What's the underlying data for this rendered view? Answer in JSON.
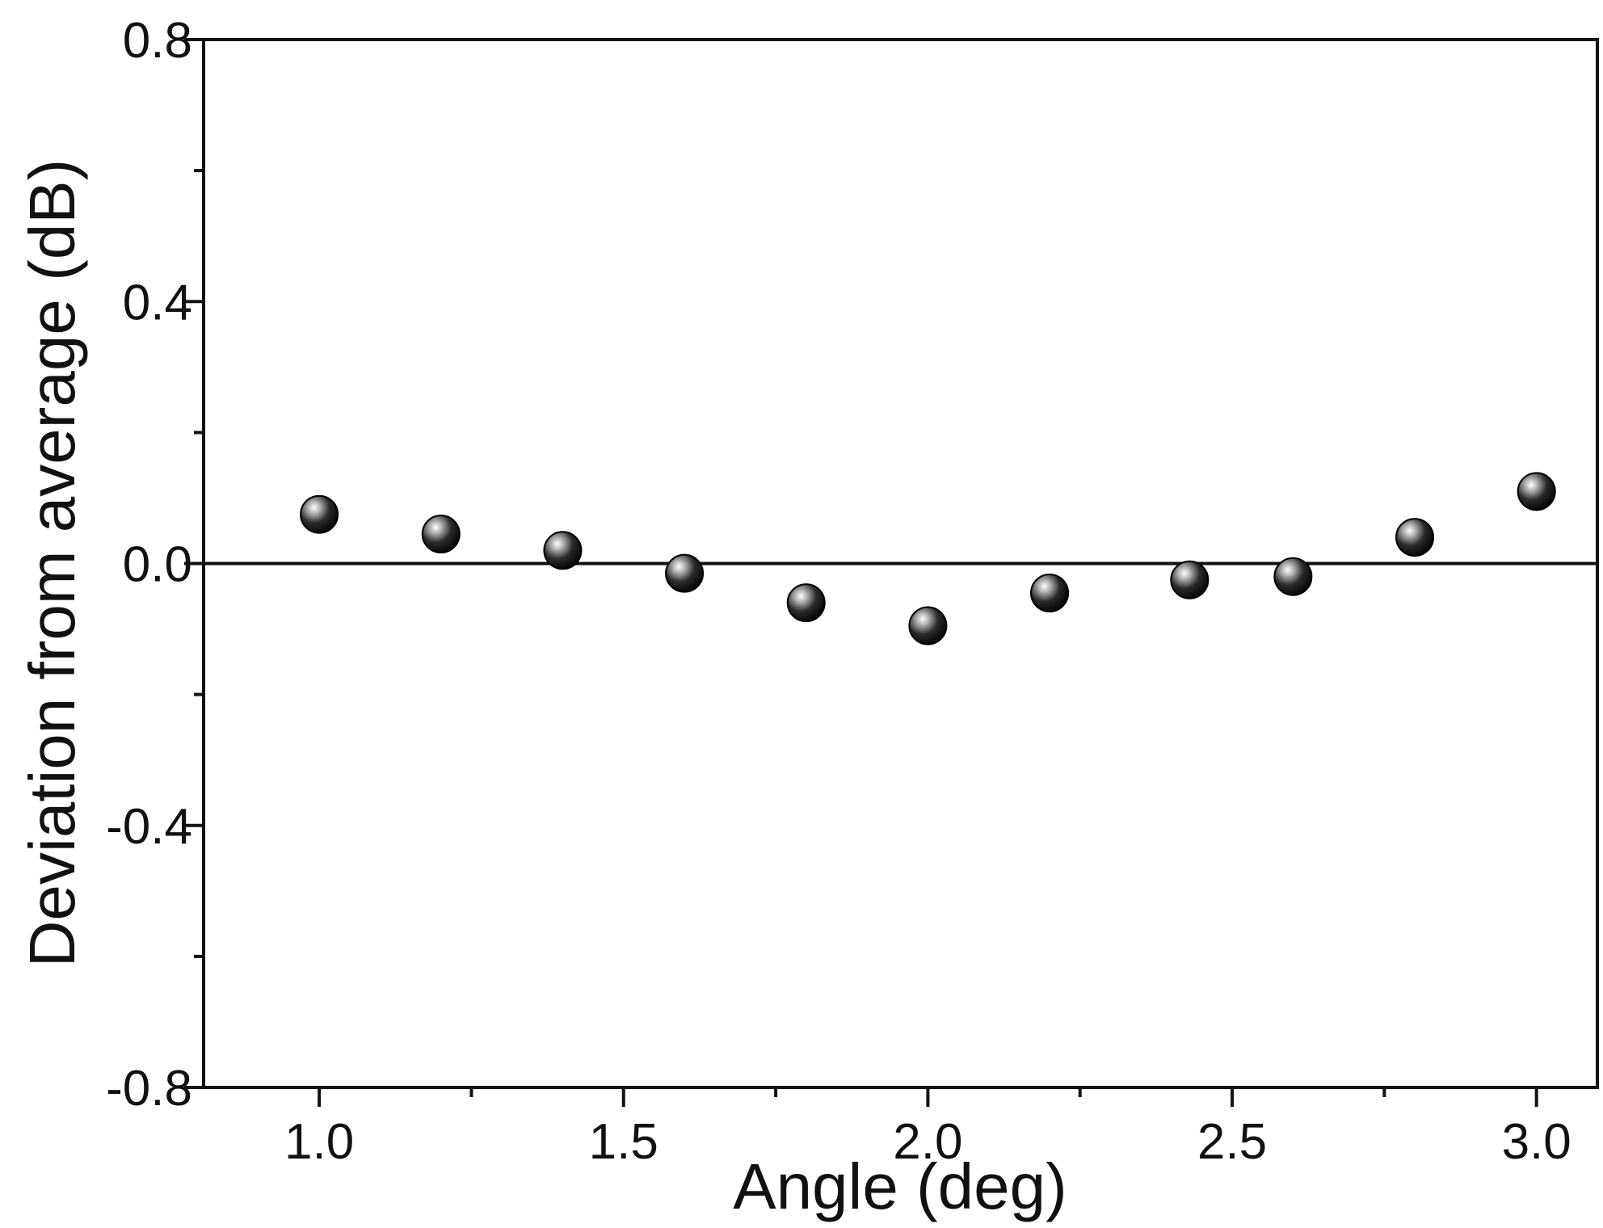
{
  "chart_data": {
    "type": "scatter",
    "title": "",
    "xlabel": "Angle (deg)",
    "ylabel": "Deviation from average (dB)",
    "xlim": [
      0.81,
      3.1
    ],
    "ylim": [
      -0.8,
      0.8
    ],
    "x_ticks": [
      {
        "value": 1.0,
        "label": "1.0"
      },
      {
        "value": 1.5,
        "label": "1.5"
      },
      {
        "value": 2.0,
        "label": "2.0"
      },
      {
        "value": 2.5,
        "label": "2.5"
      },
      {
        "value": 3.0,
        "label": "3.0"
      }
    ],
    "x_minor_ticks": [
      1.25,
      1.75,
      2.25,
      2.75
    ],
    "y_ticks": [
      {
        "value": 0.8,
        "label": "0.8"
      },
      {
        "value": 0.4,
        "label": "0.4"
      },
      {
        "value": 0.0,
        "label": "0.0"
      },
      {
        "value": -0.4,
        "label": "-0.4"
      },
      {
        "value": -0.8,
        "label": "-0.8"
      }
    ],
    "y_minor_ticks": [
      0.6,
      0.2,
      -0.2,
      -0.6
    ],
    "reference_line_y": 0.0,
    "grid": false,
    "marker": "sphere",
    "marker_color": "#000000",
    "series": [
      {
        "x": [
          1.0,
          1.2,
          1.4,
          1.6,
          1.8,
          2.0,
          2.2,
          2.43,
          2.6,
          2.8,
          3.0
        ],
        "y": [
          0.075,
          0.045,
          0.02,
          -0.015,
          -0.06,
          -0.095,
          -0.045,
          -0.025,
          -0.02,
          0.04,
          0.11
        ]
      }
    ]
  }
}
